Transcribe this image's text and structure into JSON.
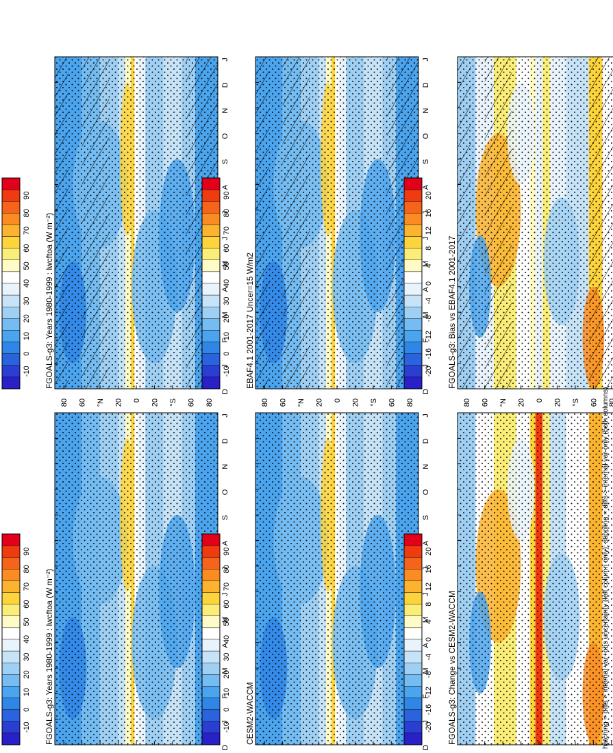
{
  "chart_data": {
    "type": "heatmap",
    "orientation": "rotated-90-ccw",
    "footnote": "hatching = diffs > internal var+obs uncertainty (left column only); stippling = diffs > internal var only (both columns)",
    "month_labels": [
      "D",
      "J",
      "F",
      "M",
      "A",
      "M",
      "J",
      "J",
      "A",
      "S",
      "O",
      "N",
      "D",
      "J"
    ],
    "lat_labels": [
      "80",
      "60",
      "°N",
      "20",
      "0",
      "20",
      "°S",
      "60",
      "80"
    ],
    "colorbars": {
      "abs": {
        "ticks": [
          "90",
          "80",
          "70",
          "60",
          "50",
          "40",
          "30",
          "20",
          "10",
          "0",
          "-10"
        ],
        "colors": [
          "#e3001b",
          "#f03a10",
          "#f6631a",
          "#fa8c23",
          "#fcb32f",
          "#fdd43c",
          "#fbee78",
          "#fffbc7",
          "#ffffff",
          "#e9f3fb",
          "#c7e3f7",
          "#9fd0f4",
          "#74bcf1",
          "#4ba4ee",
          "#2f86e6",
          "#2a63dd",
          "#2a3fd2",
          "#2a20c7"
        ]
      },
      "diff": {
        "ticks": [
          "20",
          "16",
          "12",
          "8",
          "4",
          "0",
          "-4",
          "-8",
          "-12",
          "-16",
          "-20"
        ],
        "colors": [
          "#e3001b",
          "#f03a10",
          "#f6631a",
          "#fa8c23",
          "#fcb32f",
          "#fdd43c",
          "#fbee78",
          "#fffbc7",
          "#ffffff",
          "#e9f3fb",
          "#c7e3f7",
          "#9fd0f4",
          "#74bcf1",
          "#4ba4ee",
          "#2f86e6",
          "#2a63dd",
          "#2a3fd2",
          "#2a20c7"
        ]
      }
    },
    "panels": [
      {
        "id": "p1",
        "title": "FGOALS-g3: Years 1980-1999 : lwcftoa (W m⁻²)",
        "scale": "abs",
        "range": [
          -10,
          90
        ],
        "stipple": true,
        "hatch": true
      },
      {
        "id": "p2",
        "title": "FGOALS-g3: Years 1980-1999 : lwcftoa (W m⁻²)",
        "scale": "abs",
        "range": [
          -10,
          90
        ],
        "stipple": true,
        "hatch": false
      },
      {
        "id": "p3",
        "title": "EBAF4.1 2001-2017 Uncer=15 W/m2",
        "scale": "abs",
        "range": [
          -10,
          90
        ],
        "stipple": true,
        "hatch": true
      },
      {
        "id": "p4",
        "title": "CESM2-WACCM",
        "scale": "abs",
        "range": [
          -10,
          90
        ],
        "stipple": true,
        "hatch": false
      },
      {
        "id": "p5",
        "title": "FGOALS-g3: Bias vs EBAF4.1 2001-2017",
        "scale": "diff",
        "range": [
          -20,
          20
        ],
        "stipple": true,
        "hatch": true
      },
      {
        "id": "p6",
        "title": "FGOALS-g3: Change vs CESM2-WACCM",
        "scale": "diff",
        "range": [
          -20,
          20
        ],
        "stipple": true,
        "hatch": false
      }
    ]
  }
}
